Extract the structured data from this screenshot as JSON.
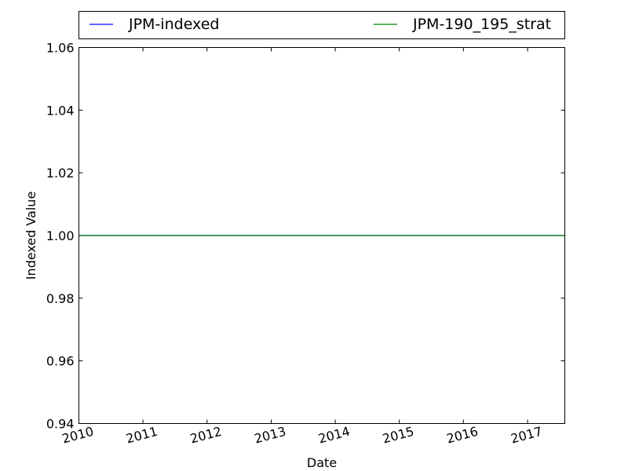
{
  "chart_data": {
    "type": "line",
    "xlabel": "Date",
    "ylabel": "Indexed Value",
    "x_ticks": [
      "2010",
      "2011",
      "2012",
      "2013",
      "2014",
      "2015",
      "2016",
      "2017"
    ],
    "y_ticks": [
      "0.94",
      "0.96",
      "0.98",
      "1.00",
      "1.02",
      "1.04",
      "1.06"
    ],
    "xlim": [
      "2010-01-01",
      "2017-08-01"
    ],
    "ylim": [
      0.94,
      1.06
    ],
    "legend_placement": "top, above plot",
    "series": [
      {
        "name": "JPM-indexed",
        "color": "#0000ff",
        "x": [
          "2010-01-01",
          "2017-08-01"
        ],
        "y": [
          1.0,
          1.0
        ]
      },
      {
        "name": "JPM-190_195_strat",
        "color": "#008000",
        "x": [
          "2010-01-01",
          "2017-08-01"
        ],
        "y": [
          1.0,
          1.0
        ]
      }
    ]
  }
}
